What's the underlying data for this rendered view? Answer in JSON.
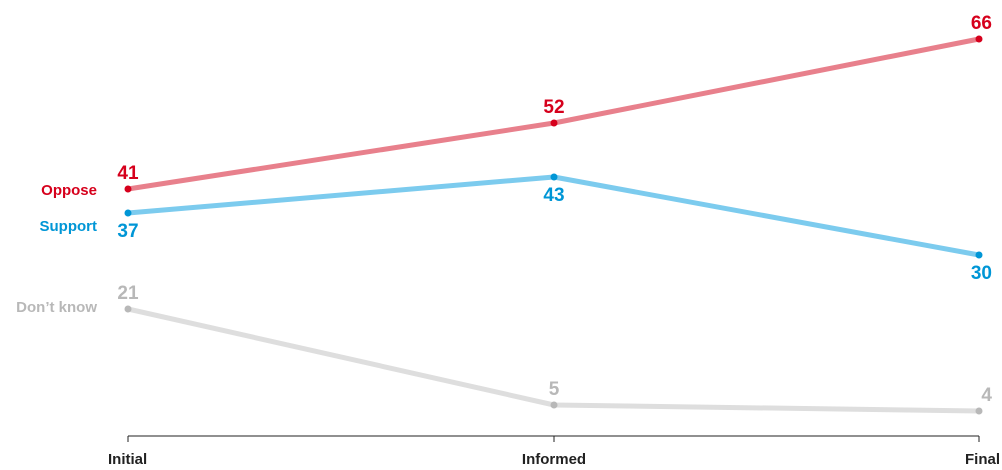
{
  "chart_data": {
    "type": "line",
    "title": "",
    "xlabel": "",
    "ylabel": "",
    "categories": [
      "Initial",
      "Informed",
      "Final"
    ],
    "ylim": [
      0,
      70
    ],
    "grid": false,
    "legend": "inline-left",
    "series": [
      {
        "name": "Oppose",
        "values": [
          41,
          52,
          66
        ],
        "color": "#d6001c",
        "line_color": "#e8808c"
      },
      {
        "name": "Support",
        "values": [
          37,
          43,
          30
        ],
        "color": "#0096d6",
        "line_color": "#7ccbee"
      },
      {
        "name": "Don’t know",
        "values": [
          21,
          5,
          4
        ],
        "color": "#b8b8b8",
        "line_color": "#dedede"
      }
    ]
  }
}
